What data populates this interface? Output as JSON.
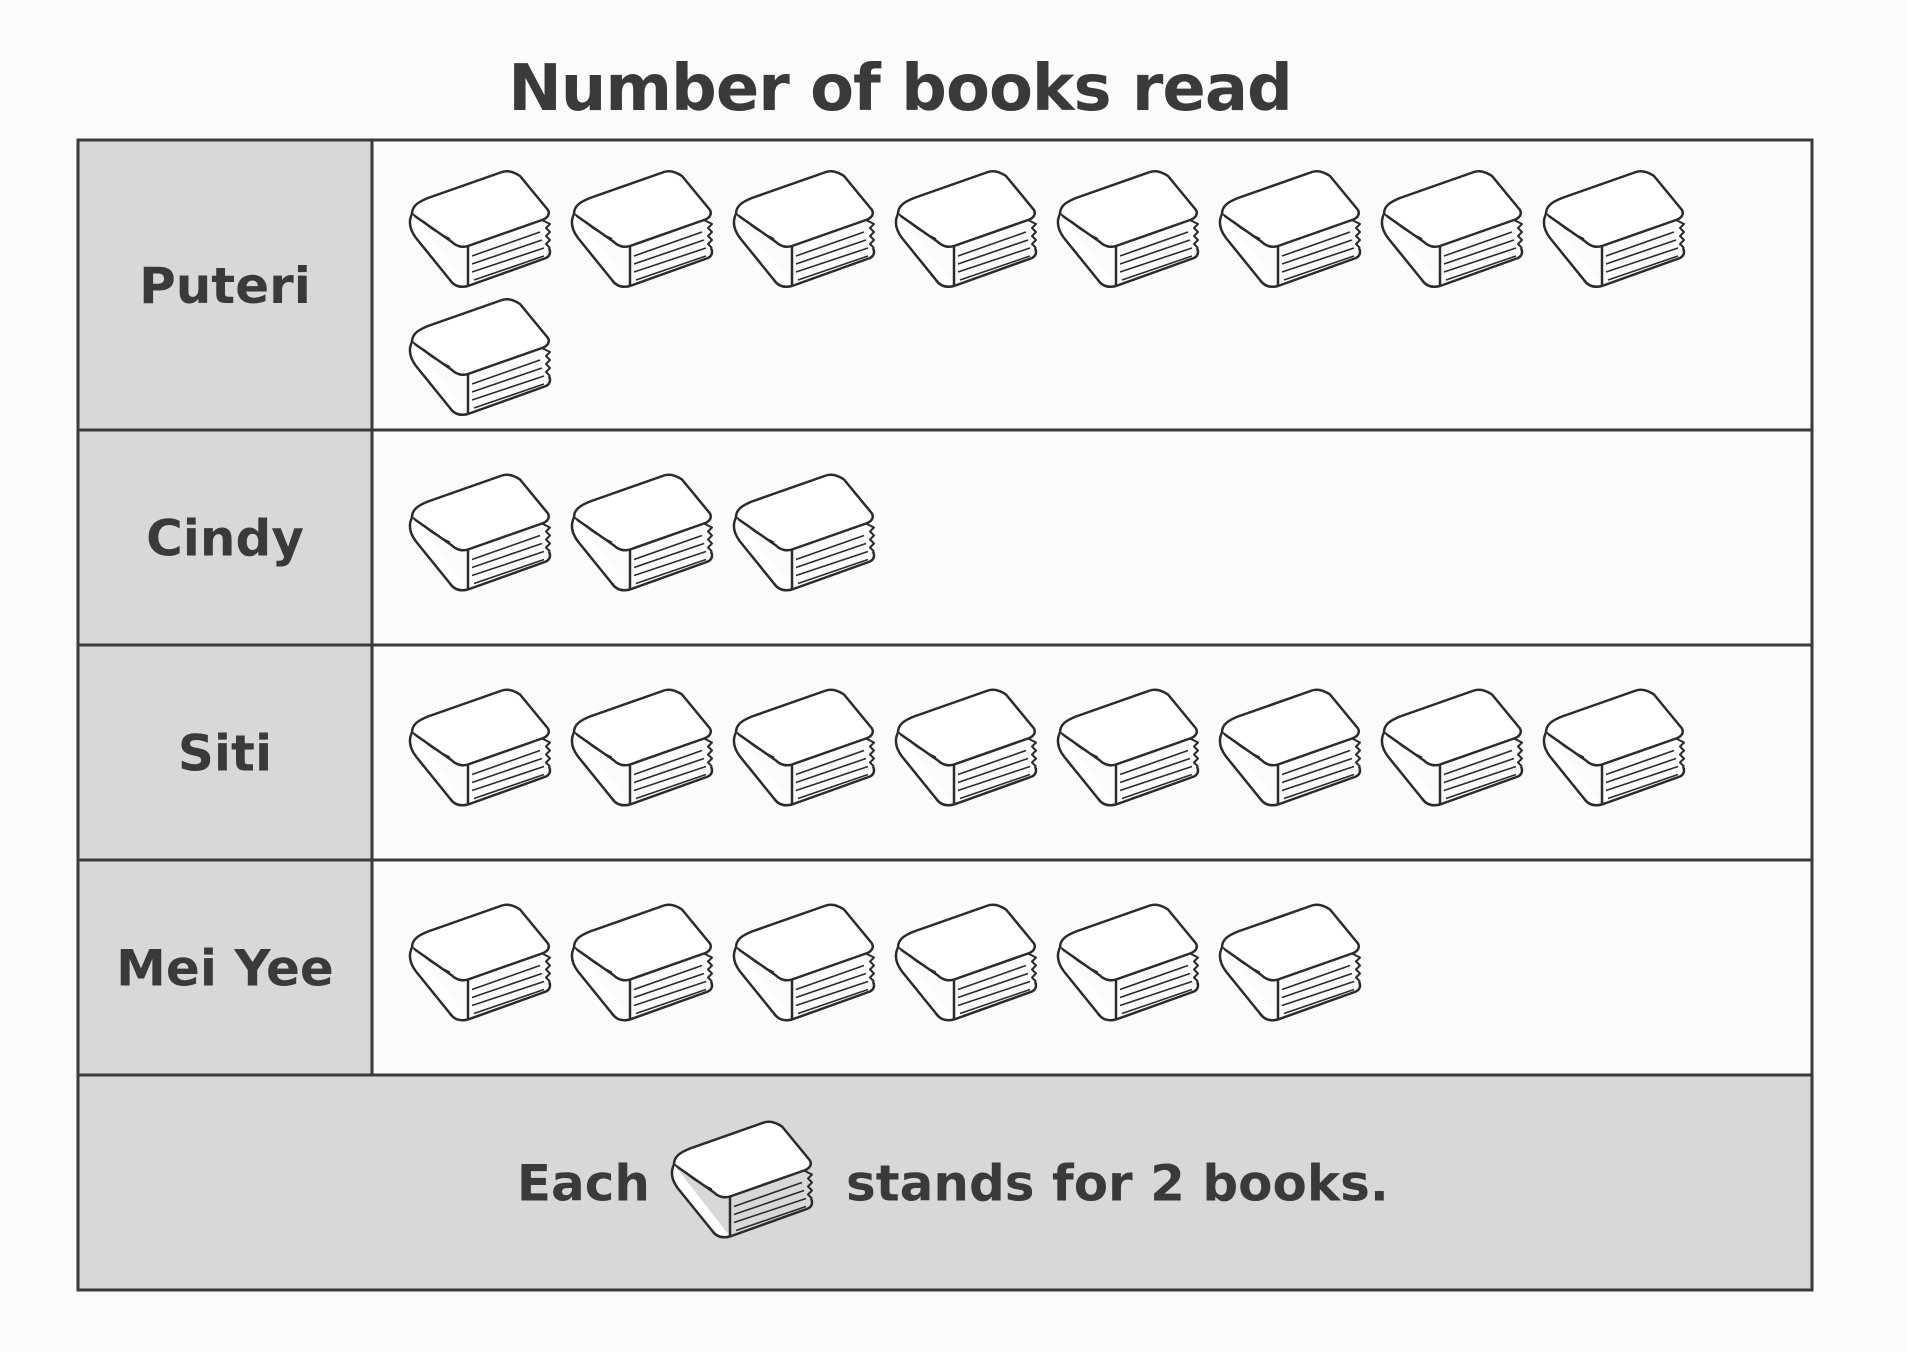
{
  "chart_data": {
    "type": "pictograph",
    "title": "Number of books read",
    "unit_per_icon": 2,
    "icon": "book-icon",
    "categories": [
      "Puteri",
      "Cindy",
      "Siti",
      "Mei Yee"
    ],
    "icon_counts": [
      9,
      3,
      8,
      6
    ],
    "values": [
      18,
      6,
      16,
      12
    ],
    "key": {
      "prefix": "Each",
      "suffix": "stands for 2 books."
    }
  },
  "colors": {
    "label_bg": "#d8d8d8",
    "grid": "#3a3a3a",
    "text": "#3a3a3a",
    "icon_stroke": "#2b2b2b",
    "icon_fill": "#ffffff"
  }
}
